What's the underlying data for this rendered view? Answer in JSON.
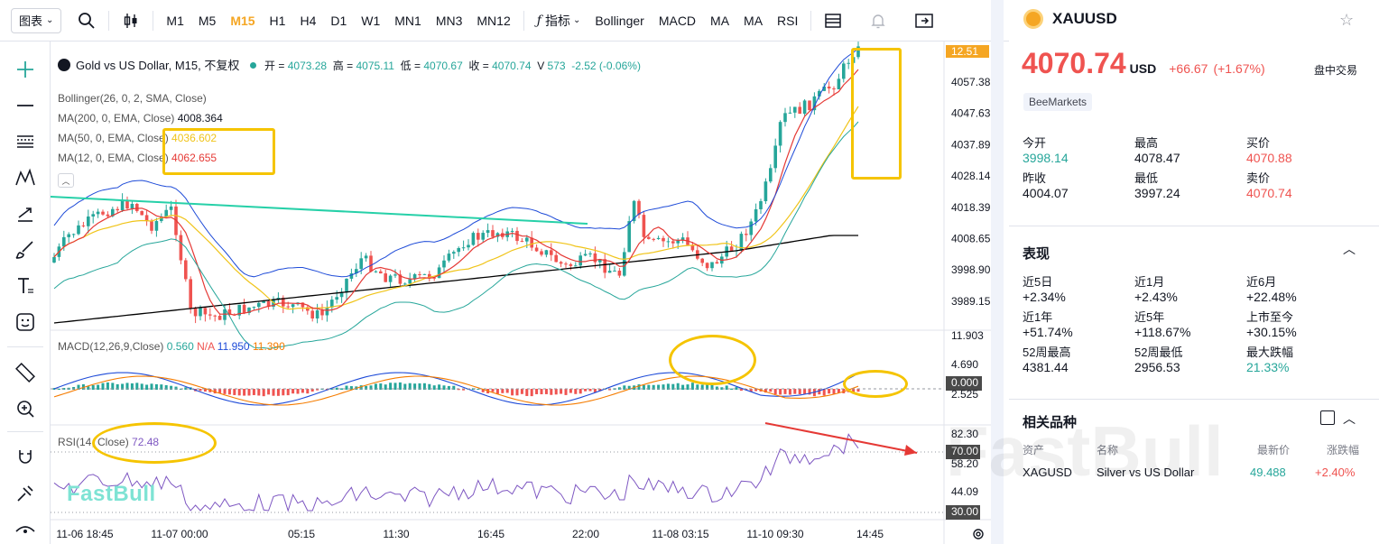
{
  "toolbar": {
    "chart_type": "图表",
    "intervals": [
      "M1",
      "M5",
      "M15",
      "H1",
      "H4",
      "D1",
      "W1",
      "MN1",
      "MN3",
      "MN12"
    ],
    "active_interval": "M15",
    "indicators_label": "指标",
    "indicator_buttons": [
      "Bollinger",
      "MACD",
      "MA",
      "MA",
      "RSI"
    ]
  },
  "legend": {
    "symbol_title": "Gold vs US Dollar, M15, 不复权",
    "o_label": "开",
    "o": "4073.28",
    "h_label": "高",
    "h": "4075.11",
    "l_label": "低",
    "l": "4070.67",
    "c_label": "收",
    "c": "4070.74",
    "v_label": "V",
    "v": "573",
    "chg": "-2.52 (-0.06%)",
    "bollinger": "Bollinger(26, 0, 2, SMA, Close)",
    "ma200": "MA(200, 0, EMA, Close)",
    "ma200_val": "4008.364",
    "ma50": "MA(50, 0, EMA, Close)",
    "ma50_val": "4036.602",
    "ma12": "MA(12, 0, EMA, Close)",
    "ma12_val": "4062.655",
    "macd": "MACD(12,26,9,Close)",
    "macd_hist": "0.560",
    "macd_na": "N/A",
    "macd_line": "11.950",
    "macd_signal": "11.390",
    "rsi": "RSI(14, Close)",
    "rsi_val": "72.48"
  },
  "price_axis": [
    "12.51",
    "4057.38",
    "4047.63",
    "4037.89",
    "4028.14",
    "4018.39",
    "4008.65",
    "3998.90",
    "3989.15"
  ],
  "macd_axis": [
    "11.903",
    "4.690",
    "0.000",
    "2.525"
  ],
  "rsi_axis": [
    "82.30",
    "70.00",
    "58.20",
    "44.09",
    "30.00"
  ],
  "time_axis": [
    "11-06 18:45",
    "11-07 00:00",
    "05:15",
    "11:30",
    "16:45",
    "22:00",
    "11-08 03:15",
    "11-10 09:30",
    "14:45"
  ],
  "watermark": "FastBull",
  "colors": {
    "up": "#26a69a",
    "down": "#ef5350",
    "accent": "#f5a623",
    "highlight": "#f5c400",
    "ma12": "#e53935",
    "ma50": "#f0c419",
    "ma200": "#000000",
    "boll": "#1e4bd8",
    "trend": "#26d0a8"
  },
  "quote": {
    "symbol": "XAUUSD",
    "price": "4070.74",
    "currency": "USD",
    "change": "+66.67",
    "change_pct": "(+1.67%)",
    "session": "盘中交易",
    "broker": "BeeMarkets",
    "stats": [
      {
        "label": "今开",
        "value": "3998.14",
        "color": "#26a69a"
      },
      {
        "label": "最高",
        "value": "4078.47",
        "color": "#131722"
      },
      {
        "label": "买价",
        "value": "4070.88",
        "color": "#ef5350"
      },
      {
        "label": "昨收",
        "value": "4004.07",
        "color": "#131722"
      },
      {
        "label": "最低",
        "value": "3997.24",
        "color": "#131722"
      },
      {
        "label": "卖价",
        "value": "4070.74",
        "color": "#ef5350"
      }
    ]
  },
  "performance": {
    "title": "表现",
    "items": [
      {
        "label": "近5日",
        "value": "+2.34%",
        "color": "#131722"
      },
      {
        "label": "近1月",
        "value": "+2.43%",
        "color": "#131722"
      },
      {
        "label": "近6月",
        "value": "+22.48%",
        "color": "#131722"
      },
      {
        "label": "近1年",
        "value": "+51.74%",
        "color": "#131722"
      },
      {
        "label": "近5年",
        "value": "+118.67%",
        "color": "#131722"
      },
      {
        "label": "上市至今",
        "value": "+30.15%",
        "color": "#131722"
      },
      {
        "label": "52周最高",
        "value": "4381.44",
        "color": "#131722"
      },
      {
        "label": "52周最低",
        "value": "2956.53",
        "color": "#131722"
      },
      {
        "label": "最大跌幅",
        "value": "21.33%",
        "color": "#26a69a"
      }
    ]
  },
  "related": {
    "title": "相关品种",
    "headers": [
      "资产",
      "名称",
      "最新价",
      "涨跌幅"
    ],
    "rows": [
      {
        "asset": "XAGUSD",
        "name": "Silver vs US Dollar",
        "price": "49.488",
        "change": "+2.40%"
      }
    ]
  }
}
